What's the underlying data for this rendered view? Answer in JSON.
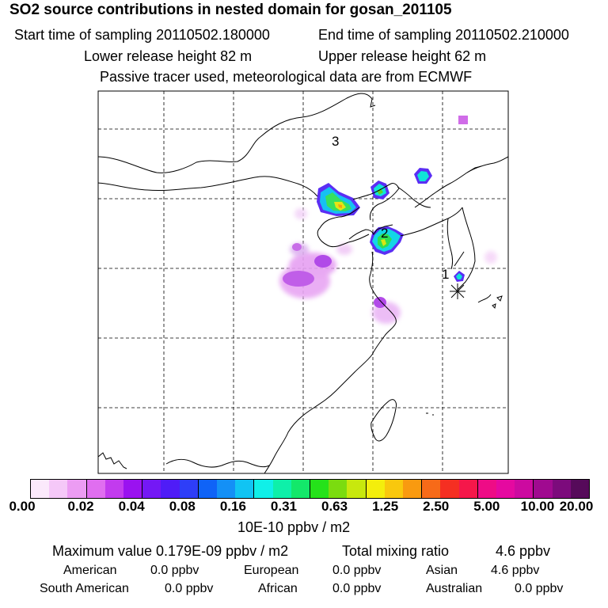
{
  "header": {
    "title": "SO2 source contributions in nested domain for gosan_201105",
    "start": "Start time of sampling 20110502.180000",
    "end": "End time of sampling 20110502.210000",
    "lower": "Lower release height   82 m",
    "upper": "Upper release height   62 m",
    "note": "Passive tracer used, meteorological data are from ECMWF"
  },
  "map": {
    "labels": [
      "3",
      "2",
      "1"
    ],
    "receptor_symbol": "✳"
  },
  "colorbar": {
    "colors": [
      "#fbe9fb",
      "#f5c8f8",
      "#ec9cf3",
      "#e06ef0",
      "#c23bee",
      "#9a12f0",
      "#7418f5",
      "#4f1cf7",
      "#2e3ef8",
      "#0f63f7",
      "#1490f6",
      "#11c4f3",
      "#10f0e8",
      "#0ef0a9",
      "#13e86a",
      "#25e21a",
      "#7bdc0f",
      "#c8e80d",
      "#f4ee0c",
      "#f9c80d",
      "#f99a10",
      "#f76a18",
      "#f52f22",
      "#f5174a",
      "#ee0c86",
      "#e509a0",
      "#cc0aa0",
      "#a00a90",
      "#7c0b7c",
      "#560a5a"
    ],
    "ticks": [
      "0.00",
      "0.02",
      "0.04",
      "0.08",
      "0.16",
      "0.31",
      "0.63",
      "1.25",
      "2.50",
      "5.00",
      "10.00",
      "20.00"
    ],
    "unit": "10E-10 ppbv / m2"
  },
  "summary": {
    "max": "Maximum value  0.179E-09 ppbv / m2",
    "total_label": "Total mixing ratio",
    "total_value": "4.6 ppbv",
    "regions": [
      {
        "name": "American",
        "value": "0.0 ppbv"
      },
      {
        "name": "European",
        "value": "0.0 ppbv"
      },
      {
        "name": "Asian",
        "value": "4.6 ppbv"
      },
      {
        "name": "South American",
        "value": "0.0 ppbv"
      },
      {
        "name": "African",
        "value": "0.0 ppbv"
      },
      {
        "name": "Australian",
        "value": "0.0 ppbv"
      }
    ]
  }
}
